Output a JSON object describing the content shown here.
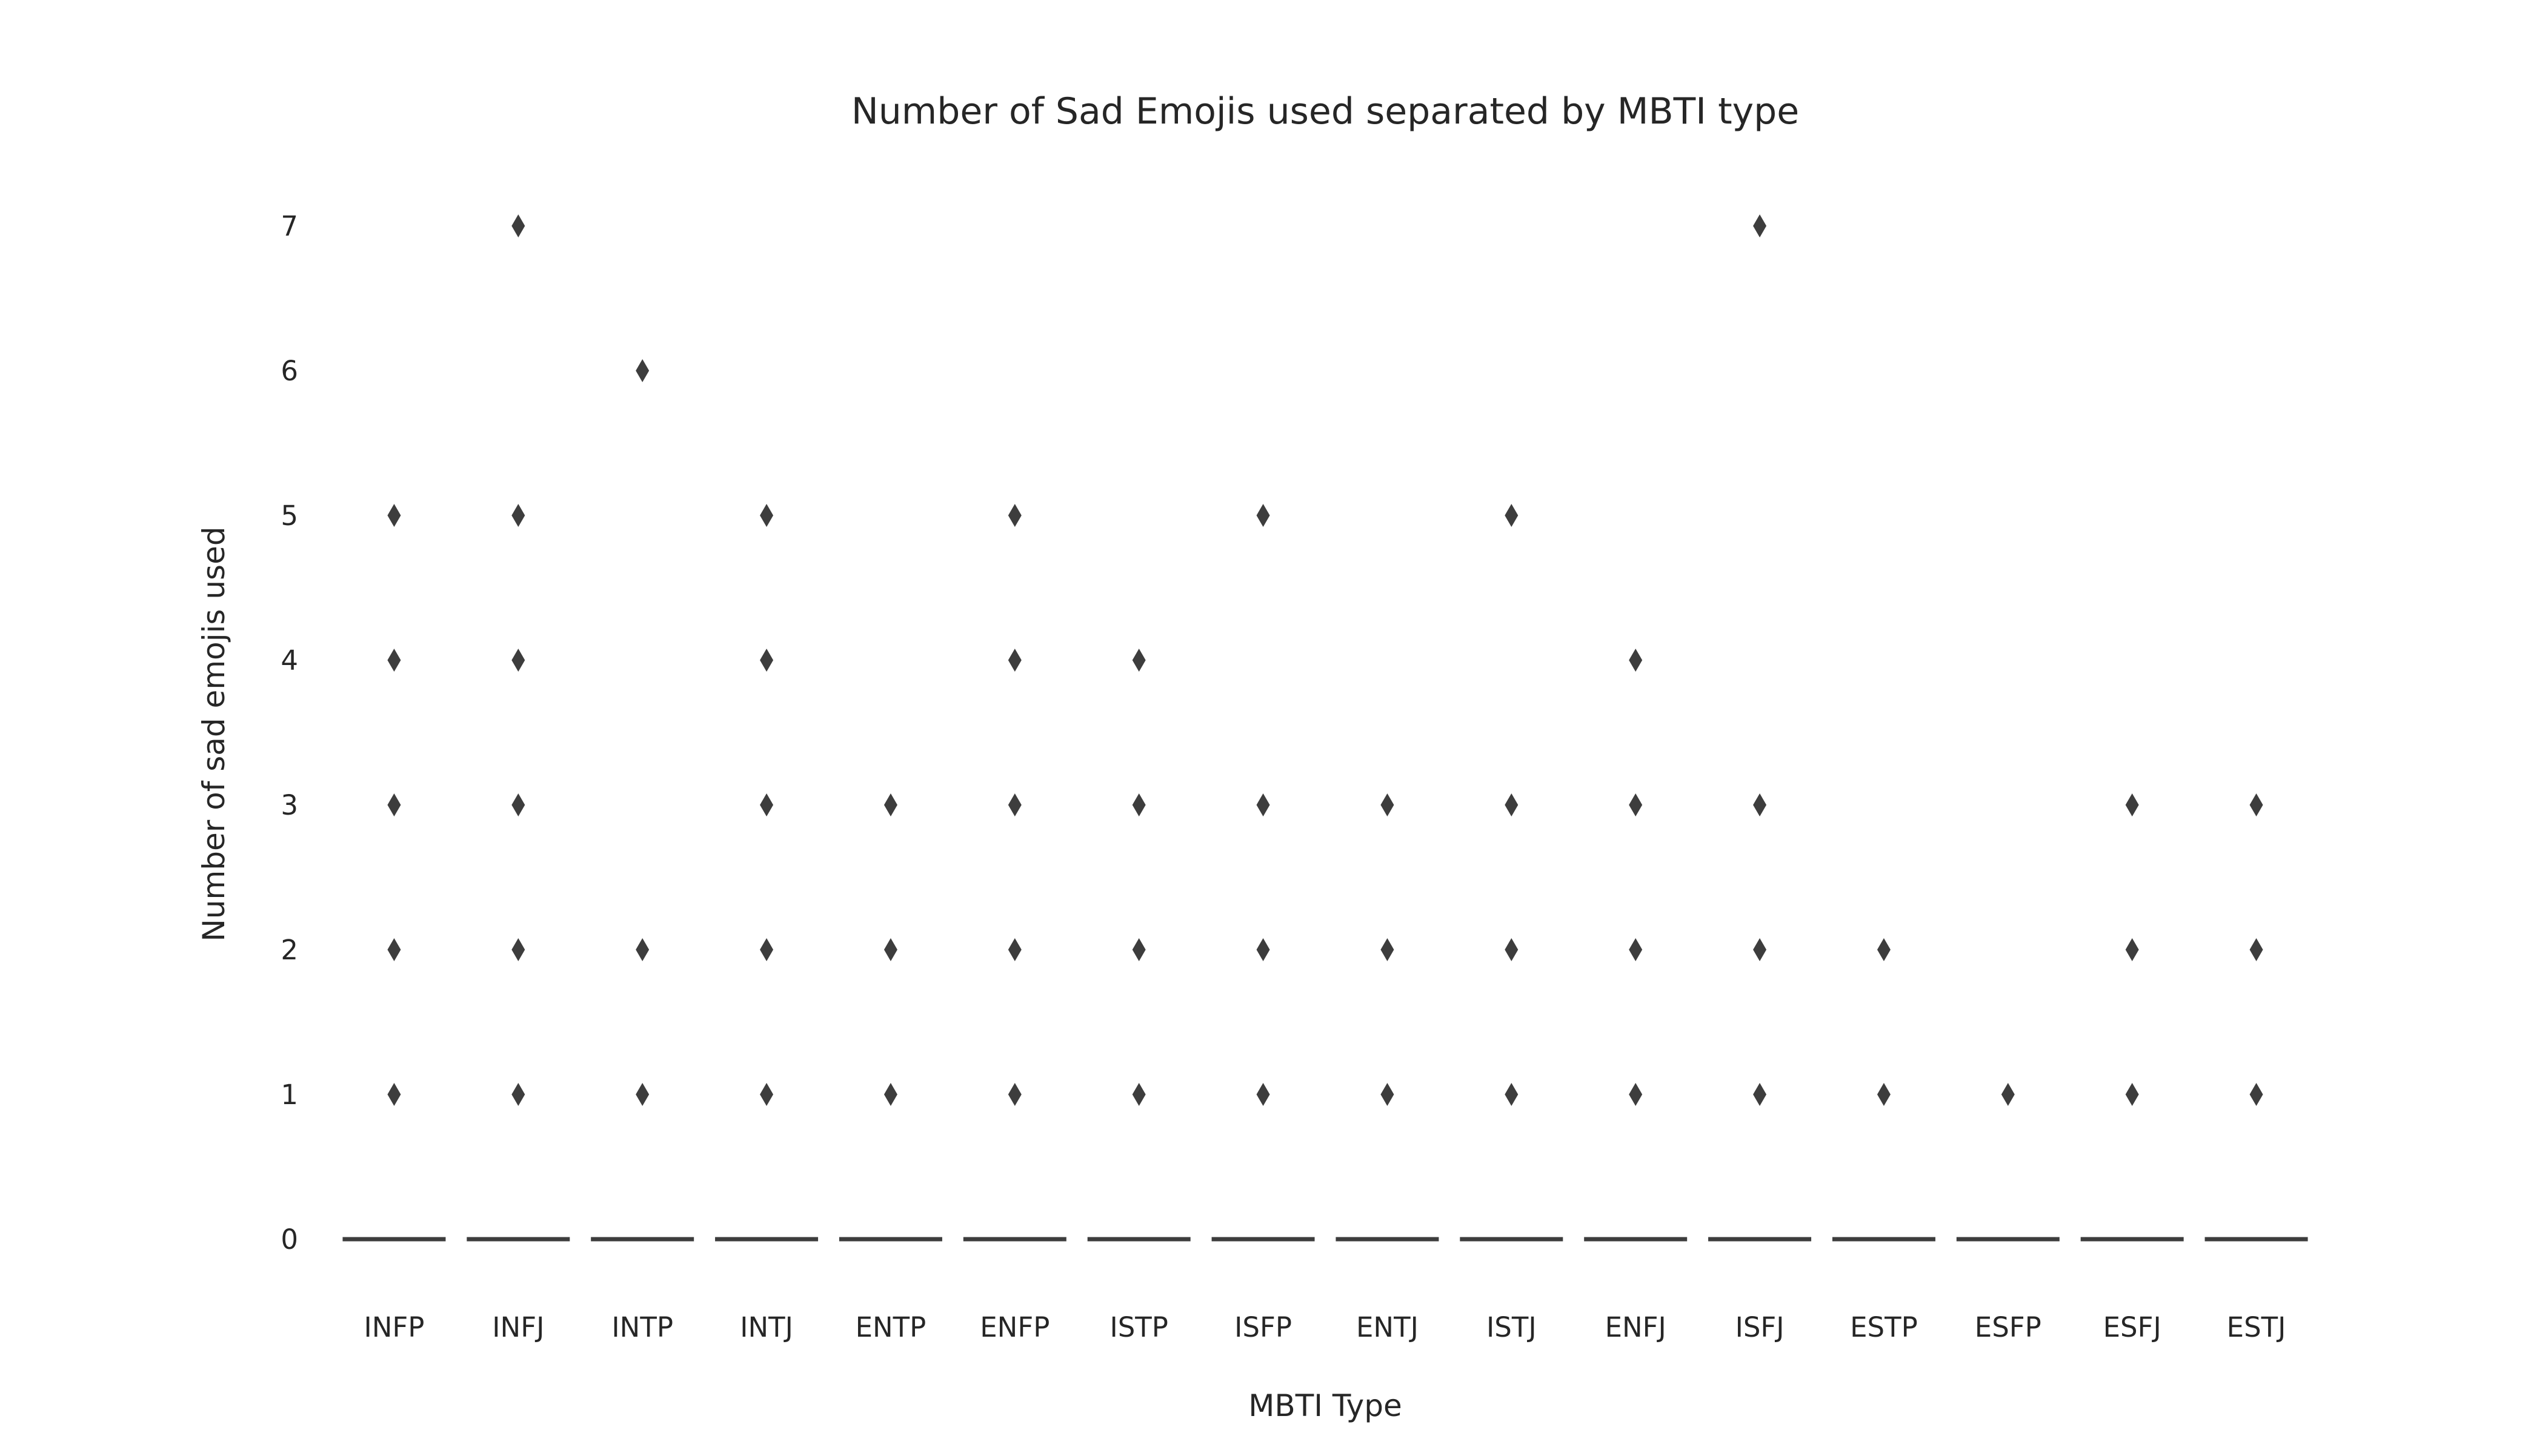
{
  "chart_data": {
    "type": "box",
    "title": "Number of Sad Emojis used separated by MBTI type",
    "xlabel": "MBTI Type",
    "ylabel": "Number of sad emojis used",
    "categories": [
      "INFP",
      "INFJ",
      "INTP",
      "INTJ",
      "ENTP",
      "ENFP",
      "ISTP",
      "ISFP",
      "ENTJ",
      "ISTJ",
      "ENFJ",
      "ISFJ",
      "ESTP",
      "ESFP",
      "ESFJ",
      "ESTJ"
    ],
    "yticks": [
      "0",
      "1",
      "2",
      "3",
      "4",
      "5",
      "6",
      "7"
    ],
    "ylim": [
      -0.3,
      7.2
    ],
    "grid": false,
    "medians": [
      0,
      0,
      0,
      0,
      0,
      0,
      0,
      0,
      0,
      0,
      0,
      0,
      0,
      0,
      0,
      0
    ],
    "outliers": [
      [
        1,
        2,
        3,
        4,
        5
      ],
      [
        1,
        2,
        3,
        4,
        5,
        7
      ],
      [
        1,
        2,
        6
      ],
      [
        1,
        2,
        3,
        4,
        5
      ],
      [
        1,
        2,
        3
      ],
      [
        1,
        2,
        3,
        4,
        5
      ],
      [
        1,
        2,
        3,
        4
      ],
      [
        1,
        2,
        3,
        5
      ],
      [
        1,
        2,
        3
      ],
      [
        1,
        2,
        3,
        5
      ],
      [
        1,
        2,
        3,
        4
      ],
      [
        1,
        2,
        3,
        7
      ],
      [
        1,
        2
      ],
      [
        1
      ],
      [
        1,
        2,
        3
      ],
      [
        1,
        2,
        3
      ]
    ],
    "colors": {
      "marker": "#3d3d3d",
      "text": "#262626",
      "background": "#ffffff"
    }
  }
}
